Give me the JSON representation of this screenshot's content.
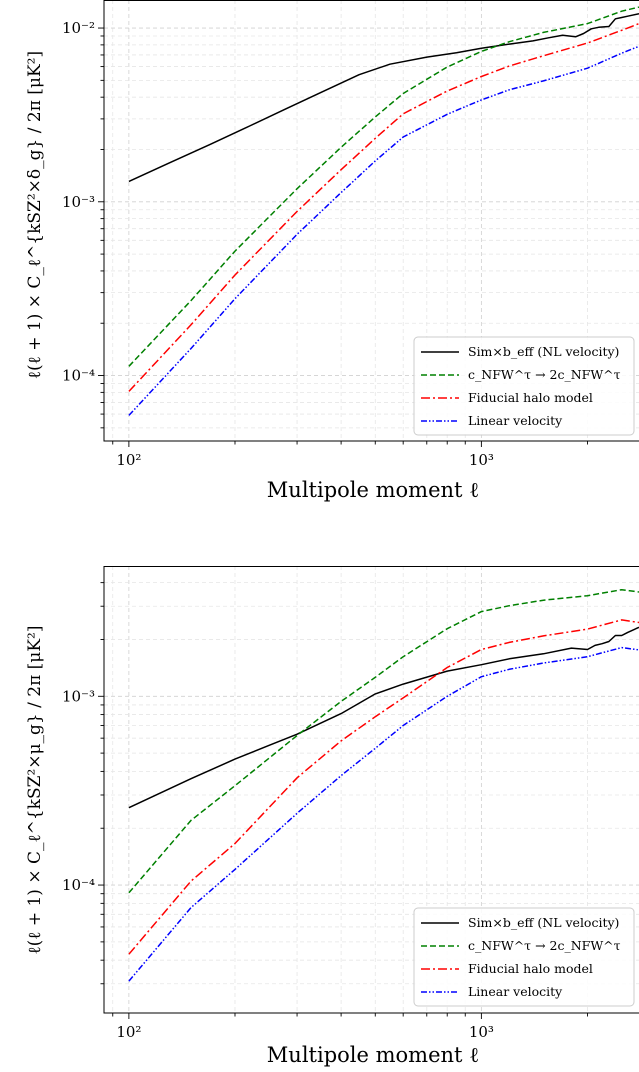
{
  "chart_data": [
    {
      "type": "line",
      "xlabel": "Multipole moment ℓ",
      "ylabel": "ℓ(ℓ + 1) × C_ℓ^{kSZ²×δ_g} / 2π [μK²]",
      "xscale": "log",
      "yscale": "log",
      "xlim": [
        85,
        2800
      ],
      "ylim": [
        4.2e-05,
        0.0145
      ],
      "grid": true,
      "legend_position": "lower-right",
      "x_ticks": [
        100,
        1000
      ],
      "x_tick_labels": [
        "10²",
        "10³"
      ],
      "y_ticks": [
        0.0001,
        0.001,
        0.01
      ],
      "y_tick_labels": [
        "10⁻⁴",
        "10⁻³",
        "10⁻²"
      ],
      "series": [
        {
          "name": "Sim×b_eff (NL velocity)",
          "color": "#000000",
          "style": "solid",
          "x": [
            100,
            130,
            170,
            220,
            280,
            350,
            450,
            550,
            700,
            850,
            1000,
            1200,
            1400,
            1550,
            1700,
            1850,
            1950,
            2050,
            2150,
            2300,
            2400,
            2500,
            2600,
            2800
          ],
          "y": [
            0.00131,
            0.00167,
            0.00214,
            0.00273,
            0.00344,
            0.00425,
            0.00539,
            0.00619,
            0.0068,
            0.0072,
            0.00766,
            0.00808,
            0.00843,
            0.00879,
            0.0091,
            0.0089,
            0.0093,
            0.0099,
            0.0101,
            0.0102,
            0.0113,
            0.0115,
            0.0117,
            0.0121
          ]
        },
        {
          "name": "c_NFW^τ → 2c_NFW^τ",
          "color": "#008000",
          "style": "dashed",
          "x": [
            100,
            150,
            200,
            300,
            400,
            500,
            600,
            800,
            1000,
            1200,
            1500,
            2000,
            2500,
            2800
          ],
          "y": [
            0.000113,
            0.00027,
            0.00052,
            0.00119,
            0.00206,
            0.00308,
            0.0042,
            0.00597,
            0.00734,
            0.00834,
            0.00944,
            0.0106,
            0.0125,
            0.0132
          ]
        },
        {
          "name": "Fiducial halo model",
          "color": "#ff0000",
          "style": "dashdot",
          "x": [
            100,
            150,
            200,
            300,
            400,
            500,
            600,
            800,
            1000,
            1200,
            1500,
            2000,
            2500,
            2800
          ],
          "y": [
            8.1e-05,
            0.000196,
            0.000379,
            0.00088,
            0.00153,
            0.00232,
            0.00321,
            0.00434,
            0.00526,
            0.00605,
            0.00692,
            0.0082,
            0.0097,
            0.0106
          ]
        },
        {
          "name": "Linear velocity",
          "color": "#0000ff",
          "style": "dashdotdot",
          "x": [
            100,
            150,
            200,
            300,
            400,
            500,
            600,
            800,
            1000,
            1200,
            1500,
            2000,
            2500,
            2800
          ],
          "y": [
            5.9e-05,
            0.000143,
            0.000277,
            0.00065,
            0.00113,
            0.00172,
            0.00236,
            0.00319,
            0.00386,
            0.00441,
            0.00496,
            0.00587,
            0.00716,
            0.00785
          ]
        }
      ]
    },
    {
      "type": "line",
      "xlabel": "Multipole moment ℓ",
      "ylabel": "ℓ(ℓ + 1) × C_ℓ^{kSZ²×μ_g} / 2π [μK²]",
      "xscale": "log",
      "yscale": "log",
      "xlim": [
        85,
        2800
      ],
      "ylim": [
        2.1e-05,
        0.0049
      ],
      "grid": true,
      "legend_position": "lower-right",
      "x_ticks": [
        100,
        1000
      ],
      "x_tick_labels": [
        "10²",
        "10³"
      ],
      "y_ticks": [
        0.0001,
        0.001
      ],
      "y_tick_labels": [
        "10⁻⁴",
        "10⁻³"
      ],
      "series": [
        {
          "name": "Sim×b_eff (NL velocity)",
          "color": "#000000",
          "style": "solid",
          "x": [
            100,
            150,
            200,
            250,
            300,
            400,
            500,
            600,
            800,
            1000,
            1200,
            1500,
            1800,
            2000,
            2100,
            2200,
            2300,
            2400,
            2500,
            2600,
            2800
          ],
          "y": [
            0.000257,
            0.000366,
            0.000465,
            0.00055,
            0.00063,
            0.00081,
            0.00103,
            0.00116,
            0.00136,
            0.00147,
            0.00158,
            0.00168,
            0.0018,
            0.00177,
            0.00186,
            0.0019,
            0.00195,
            0.0021,
            0.0021,
            0.00218,
            0.00232
          ]
        },
        {
          "name": "c_NFW^τ → 2c_NFW^τ",
          "color": "#008000",
          "style": "dashed",
          "x": [
            100,
            150,
            200,
            300,
            400,
            500,
            600,
            800,
            1000,
            1200,
            1500,
            2000,
            2500,
            2800
          ],
          "y": [
            9.1e-05,
            0.00022,
            0.000336,
            0.00062,
            0.00094,
            0.00126,
            0.00162,
            0.00228,
            0.00281,
            0.00302,
            0.00323,
            0.00341,
            0.00367,
            0.00357
          ]
        },
        {
          "name": "Fiducial halo model",
          "color": "#ff0000",
          "style": "dashdot",
          "x": [
            100,
            150,
            200,
            300,
            400,
            500,
            600,
            800,
            1000,
            1200,
            1500,
            2000,
            2500,
            2800
          ],
          "y": [
            4.3e-05,
            0.000105,
            0.000166,
            0.00037,
            0.00058,
            0.00078,
            0.00098,
            0.00142,
            0.00177,
            0.00193,
            0.00209,
            0.00227,
            0.00254,
            0.00246
          ]
        },
        {
          "name": "Linear velocity",
          "color": "#0000ff",
          "style": "dashdotdot",
          "x": [
            100,
            150,
            200,
            300,
            400,
            500,
            600,
            800,
            1000,
            1200,
            1500,
            2000,
            2500,
            2800
          ],
          "y": [
            3.1e-05,
            7.6e-05,
            0.000121,
            0.00024,
            0.00038,
            0.00053,
            0.0007,
            0.001,
            0.00127,
            0.00139,
            0.0015,
            0.00162,
            0.00181,
            0.00176
          ]
        }
      ]
    }
  ]
}
